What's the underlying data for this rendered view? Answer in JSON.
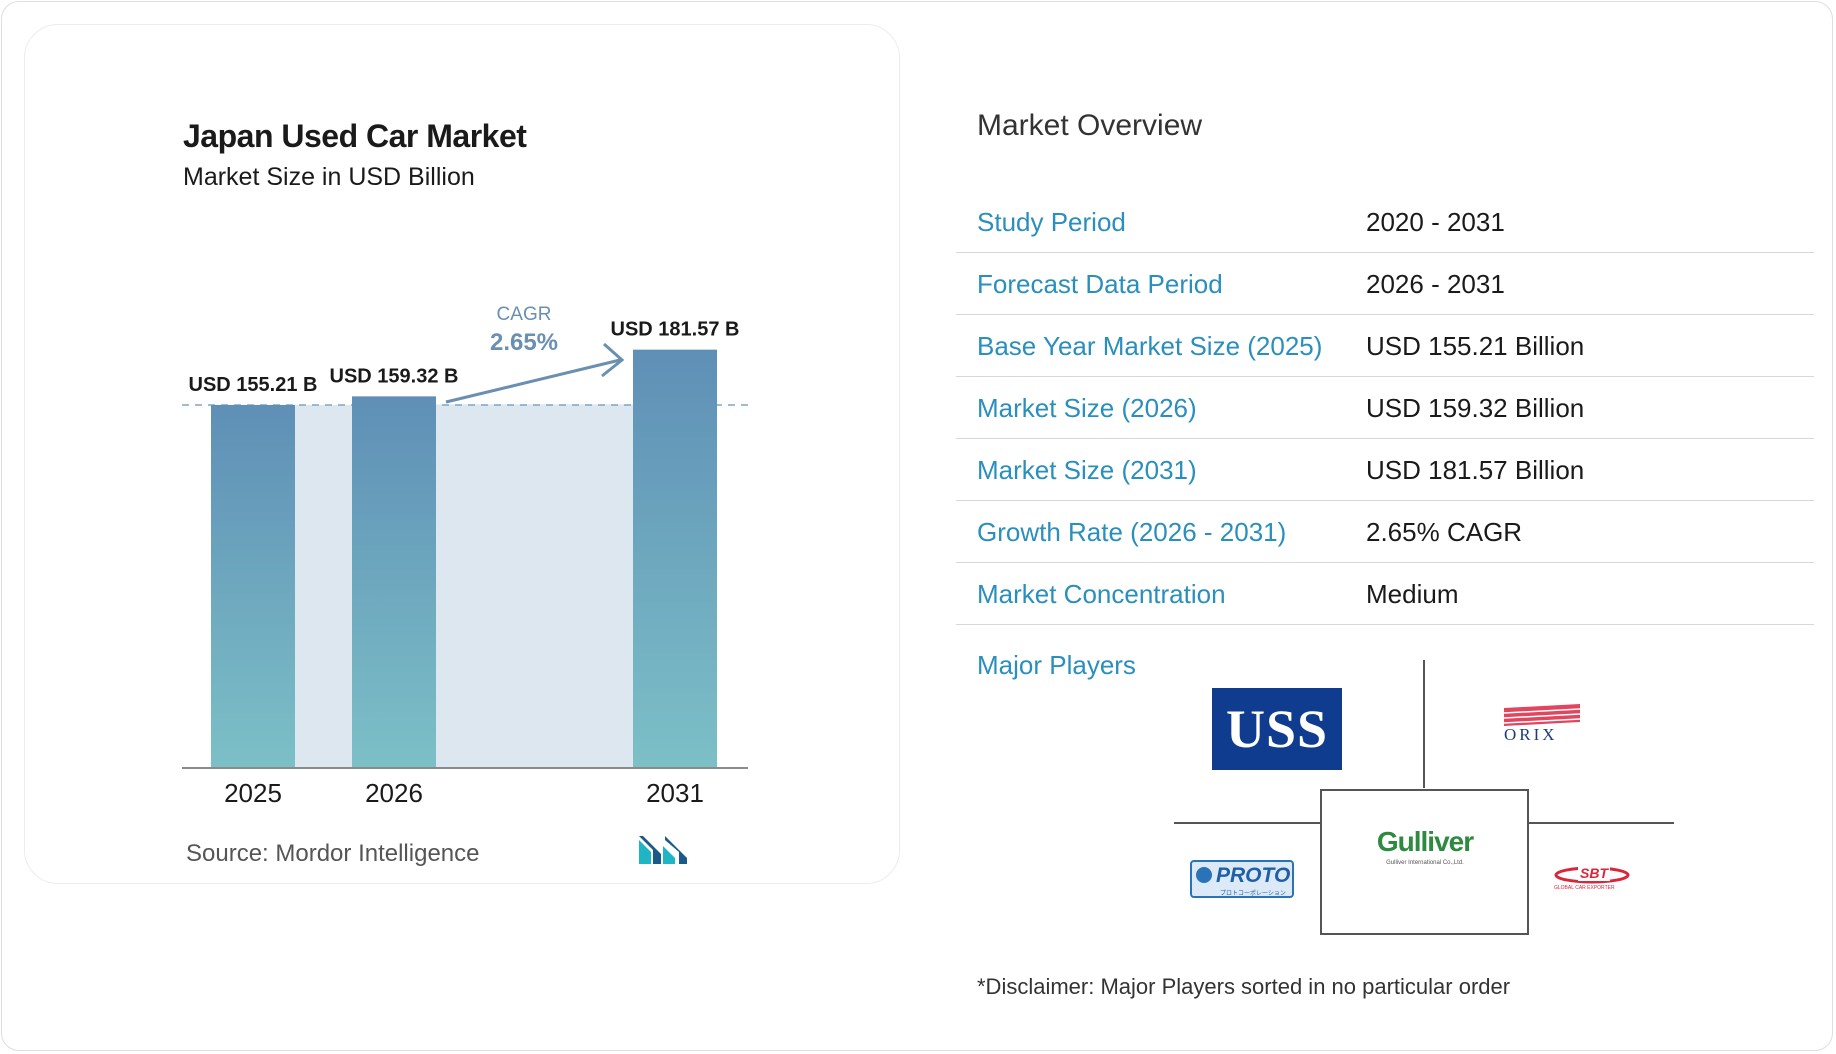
{
  "chart_data": {
    "type": "bar",
    "title": "Japan Used Car Market",
    "subtitle": "Market Size in USD Billion",
    "categories": [
      "2025",
      "2026",
      "2031"
    ],
    "values": [
      155.21,
      159.32,
      181.57
    ],
    "data_labels": [
      "USD 155.21 B",
      "USD 159.32 B",
      "USD 181.57 B"
    ],
    "cagr_label": "CAGR",
    "cagr_value": "2.65%",
    "source": "Source:  Mordor Intelligence",
    "colors": {
      "bar_top": "#5f8fb6",
      "bar_bottom": "#7cc0c7",
      "band": "#dde7f0",
      "cagr_text": "#6a8fb0",
      "arrow": "#6a8fb0"
    }
  },
  "overview": {
    "title": "Market Overview",
    "rows": [
      {
        "label": "Study Period",
        "value": "2020 - 2031"
      },
      {
        "label": "Forecast Data Period",
        "value": "2026 - 2031"
      },
      {
        "label": "Base Year Market Size (2025)",
        "value": "USD 155.21 Billion"
      },
      {
        "label": "Market Size (2026)",
        "value": "USD 159.32 Billion"
      },
      {
        "label": "Market Size (2031)",
        "value": "USD 181.57 Billion"
      },
      {
        "label": "Growth Rate (2026 - 2031)",
        "value": "2.65% CAGR"
      },
      {
        "label": "Market Concentration",
        "value": "Medium"
      }
    ],
    "label_color": "#2a8fbd"
  },
  "players": {
    "label": "Major Players",
    "logos": {
      "uss": "USS",
      "orix": "ORIX",
      "gulliver": "Gulliver",
      "gulliver_sub": "Gulliver International Co.,Ltd.",
      "proto": "PROTO",
      "proto_sub": "プロトコーポレーション",
      "sbt": "SBT",
      "sbt_sub": "GLOBAL CAR EXPORTER"
    }
  },
  "disclaimer": "*Disclaimer: Major Players sorted in no particular order"
}
